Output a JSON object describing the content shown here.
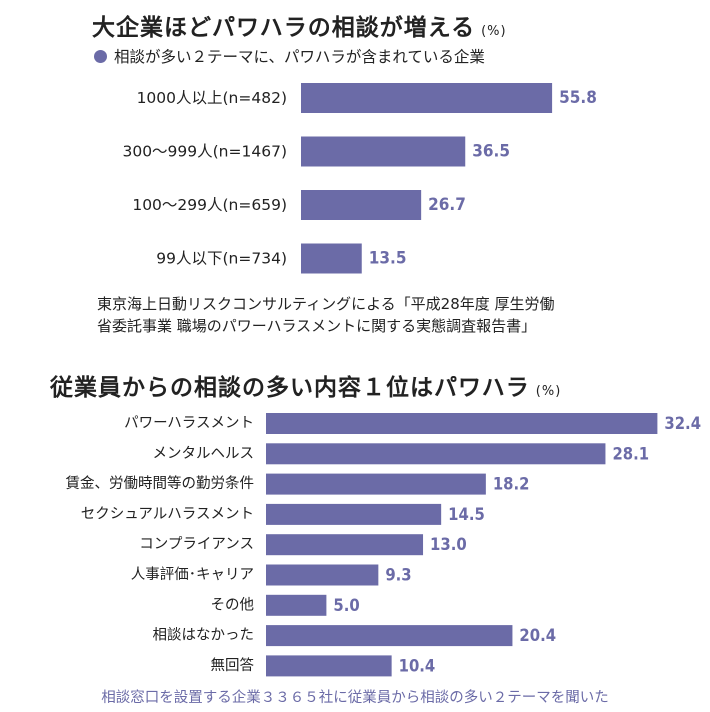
{
  "colors": {
    "bar": "#6b6ba7",
    "text": "#222222"
  },
  "chart_data": [
    {
      "type": "bar",
      "orientation": "horizontal",
      "title": "大企業ほどパワハラの相談が増える",
      "unit": "(%)",
      "legend": "相談が多い２テーマに、パワハラが含まれている企業",
      "categories": [
        "1000人以上(n=482)",
        "300〜999人(n=1467)",
        "100〜299人(n=659)",
        "99人以下(n=734)"
      ],
      "values": [
        55.8,
        36.5,
        26.7,
        13.5
      ],
      "value_labels": [
        "55.8",
        "36.5",
        "26.7",
        "13.5"
      ],
      "note": [
        "東京海上日動リスクコンサルティングによる「平成28年度 厚生労働",
        "省委託事業 職場のパワーハラスメントに関する実態調査報告書」"
      ]
    },
    {
      "type": "bar",
      "orientation": "horizontal",
      "title": "従業員からの相談の多い内容１位はパワハラ",
      "unit": "(%)",
      "categories": [
        "パワーハラスメント",
        "メンタルヘルス",
        "賃金、労働時間等の勤労条件",
        "セクシュアルハラスメント",
        "コンプライアンス",
        "人事評価･キャリア",
        "その他",
        "相談はなかった",
        "無回答"
      ],
      "values": [
        32.4,
        28.1,
        18.2,
        14.5,
        13.0,
        9.3,
        5.0,
        20.4,
        10.4
      ],
      "value_labels": [
        "32.4",
        "28.1",
        "18.2",
        "14.5",
        "13.0",
        "9.3",
        "5.0",
        "20.4",
        "10.4"
      ],
      "source": "相談窓口を設置する企業３３６５社に従業員から相談の多い２テーマを聞いた"
    }
  ]
}
